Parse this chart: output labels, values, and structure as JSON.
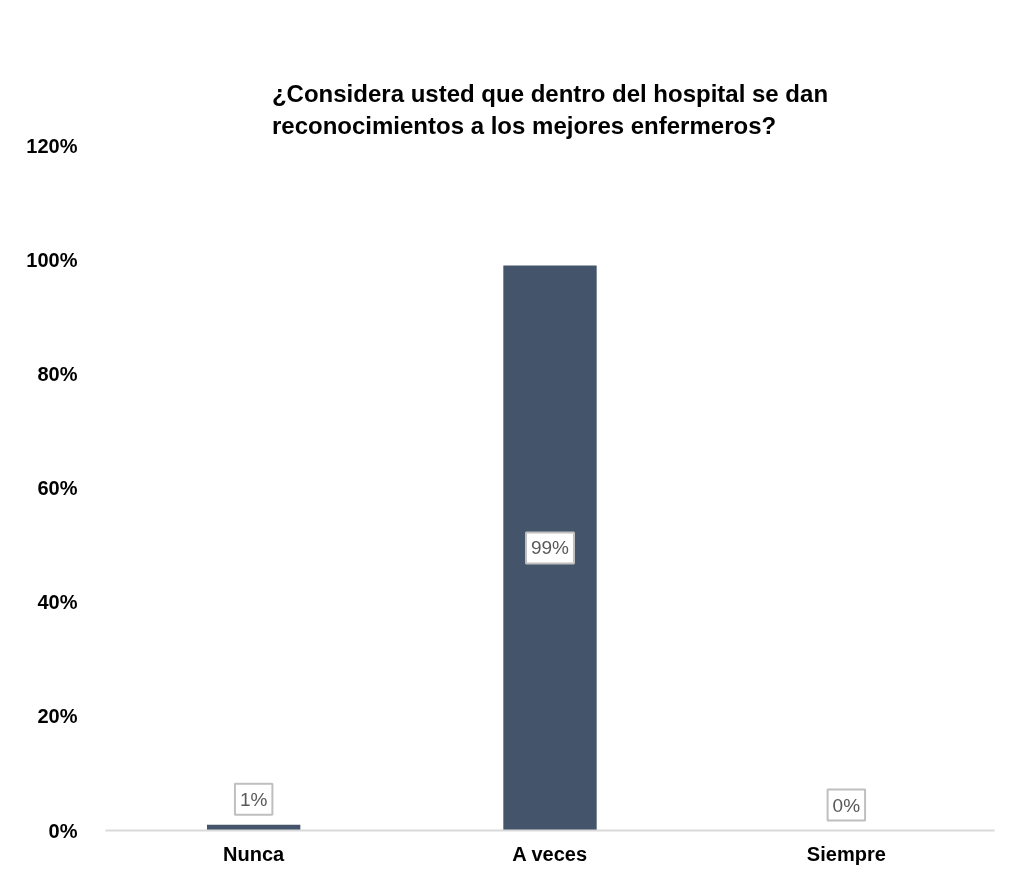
{
  "chart_data": {
    "type": "bar",
    "title": "¿Considera usted que dentro del hospital se dan reconocimientos a los mejores enfermeros?",
    "categories": [
      "Nunca",
      "A veces",
      "Siempre"
    ],
    "values": [
      1,
      99,
      0
    ],
    "value_labels": [
      "1%",
      "99%",
      "0%"
    ],
    "color": "#44546a",
    "ylim": [
      0,
      120
    ],
    "yticks": [
      {
        "value": 0,
        "label": "0%"
      },
      {
        "value": 20,
        "label": "20%"
      },
      {
        "value": 40,
        "label": "40%"
      },
      {
        "value": 60,
        "label": "60%"
      },
      {
        "value": 80,
        "label": "80%"
      },
      {
        "value": 100,
        "label": "100%"
      },
      {
        "value": 120,
        "label": "120%"
      }
    ]
  }
}
